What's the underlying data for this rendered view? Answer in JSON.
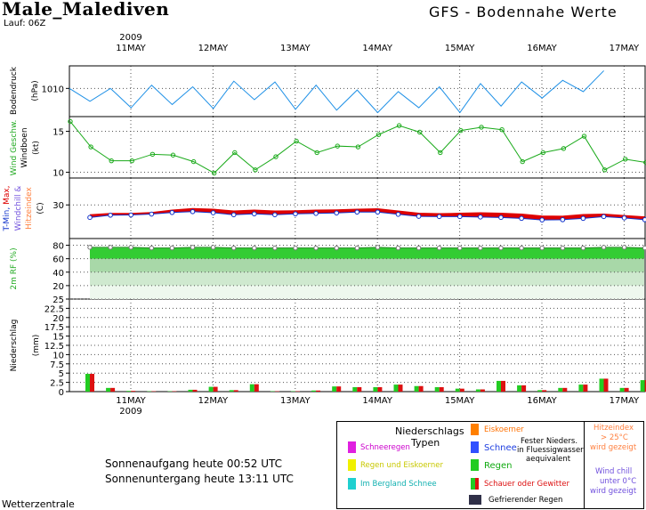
{
  "header": {
    "location": "Male_Malediven",
    "run_label": "Lauf: 06Z",
    "model_title": "GFS - Bodennahe Werte"
  },
  "footer": {
    "source": "Wetterzentrale"
  },
  "sun": {
    "sunrise": "Sonnenaufgang heute 00:52 UTC",
    "sunset": "Sonnenuntergang heute 13:11 UTC"
  },
  "legend": {
    "precip_title": "Niederschlags",
    "precip_title2": "Typen",
    "items": [
      {
        "label": "Schneeregen",
        "color": "#e020e0"
      },
      {
        "label": "Regen und Eiskoerner",
        "color": "#f0f000"
      },
      {
        "label": "Im Bergland Schnee",
        "color": "#20d0d0"
      },
      {
        "label": "Eiskoerner",
        "color": "#ff7f00"
      },
      {
        "label": "Schnee",
        "color": "#3050ff"
      },
      {
        "label": "Regen",
        "color": "#22cc22"
      },
      {
        "label": "Schauer oder Gewitter",
        "color": "#dd1111"
      },
      {
        "label": "Gefrierender Regen",
        "color": "#303048"
      }
    ],
    "solid_note": [
      "Fester Nieders.",
      "in Fluessigwasser",
      "aequivalent"
    ],
    "heat_note": [
      "Hitzeindex",
      "> 25°C",
      "wird gezeigt"
    ],
    "chill_note": [
      "Wind chill",
      "unter 0°C",
      "wird gezeigt"
    ]
  },
  "chart_data": [
    {
      "type": "line",
      "panel": "pressure",
      "ylabel": "Bodendruck (hPa)",
      "yticks": [
        1010
      ],
      "ylim": [
        1006.5,
        1012.8
      ],
      "color": "#1e90e6",
      "x_start": "2009-05-10 12Z",
      "x_step_hours": 6,
      "values": [
        1010.0,
        1008.4,
        1010.0,
        1007.6,
        1010.4,
        1008.0,
        1010.2,
        1007.5,
        1010.9,
        1008.6,
        1010.8,
        1007.4,
        1010.4,
        1007.3,
        1009.8,
        1007.0,
        1009.6,
        1007.6,
        1010.2,
        1007.0,
        1010.6,
        1007.8,
        1010.8,
        1008.8,
        1011.0,
        1009.6,
        1012.2
      ]
    },
    {
      "type": "line",
      "panel": "wind",
      "ylabel": "Wind Geschw. Windboen (kt)",
      "yticks": [
        10,
        15
      ],
      "ylim": [
        9.3,
        16.8
      ],
      "color": "#1aaa1a",
      "values": [
        16.2,
        13.1,
        11.4,
        11.4,
        12.2,
        12.1,
        11.3,
        9.9,
        12.4,
        10.3,
        11.9,
        13.8,
        12.4,
        13.2,
        13.1,
        14.6,
        15.7,
        14.9,
        12.4,
        15.1,
        15.5,
        15.2,
        11.3,
        12.4,
        12.9,
        14.4,
        10.3,
        11.6,
        11.2
      ]
    },
    {
      "type": "line",
      "panel": "temperature",
      "ylabel": "T-Min, Max, Windchill & Hitzeindex (C)",
      "yticks": [
        30
      ],
      "ylim": [
        15,
        42
      ],
      "series": [
        {
          "name": "T-Max",
          "color": "#dd0000",
          "values": [
            25.5,
            26.1,
            26.1,
            26.5,
            27.6,
            28.3,
            28.0,
            27.2,
            27.6,
            27.2,
            27.3,
            27.6,
            27.7,
            28.0,
            28.2,
            27.2,
            26.2,
            26.0,
            26.2,
            26.4,
            26.2,
            25.8,
            25.0,
            24.9,
            25.6,
            25.8,
            25.2,
            24.6
          ]
        },
        {
          "name": "T-Min",
          "color": "#1133cc",
          "values": [
            24.4,
            25.4,
            25.5,
            25.9,
            26.6,
            27.0,
            26.5,
            25.6,
            26.0,
            25.6,
            26.0,
            26.2,
            26.4,
            26.8,
            26.8,
            25.8,
            24.9,
            24.8,
            24.8,
            24.6,
            24.4,
            24.0,
            23.3,
            23.4,
            24.0,
            24.8,
            24.2,
            23.4
          ]
        }
      ]
    },
    {
      "type": "area",
      "panel": "humidity",
      "ylabel": "2m RF (%)",
      "yticks": [
        20,
        40,
        60,
        80
      ],
      "ylim": [
        0,
        90
      ],
      "color": "#33cc33",
      "values": [
        77,
        77,
        77,
        76,
        76,
        77,
        77,
        76,
        76,
        76,
        76,
        76,
        76,
        76,
        77,
        76,
        76,
        76,
        76,
        76,
        76,
        76,
        76,
        76,
        76,
        77,
        77,
        76,
        76
      ]
    },
    {
      "type": "bar",
      "panel": "precipitation",
      "ylabel": "Niederschlag (mm)",
      "yticks": [
        0,
        2.5,
        5,
        7.5,
        10,
        12.5,
        15,
        17.5,
        20,
        22.5,
        25
      ],
      "ylim": [
        0,
        25
      ],
      "x_tick_labels": [
        "11MAY",
        "12MAY",
        "13MAY",
        "14MAY",
        "15MAY",
        "16MAY",
        "17MAY"
      ],
      "year_label": "2009",
      "values": [
        4.8,
        1.0,
        0.2,
        0.1,
        0.1,
        0.5,
        1.3,
        0.4,
        2.0,
        0.1,
        0.1,
        0.3,
        1.4,
        1.2,
        1.2,
        1.9,
        1.5,
        1.2,
        0.8,
        0.6,
        2.9,
        1.7,
        0.4,
        1.0,
        1.9,
        3.5,
        1.0,
        3.1
      ]
    }
  ]
}
